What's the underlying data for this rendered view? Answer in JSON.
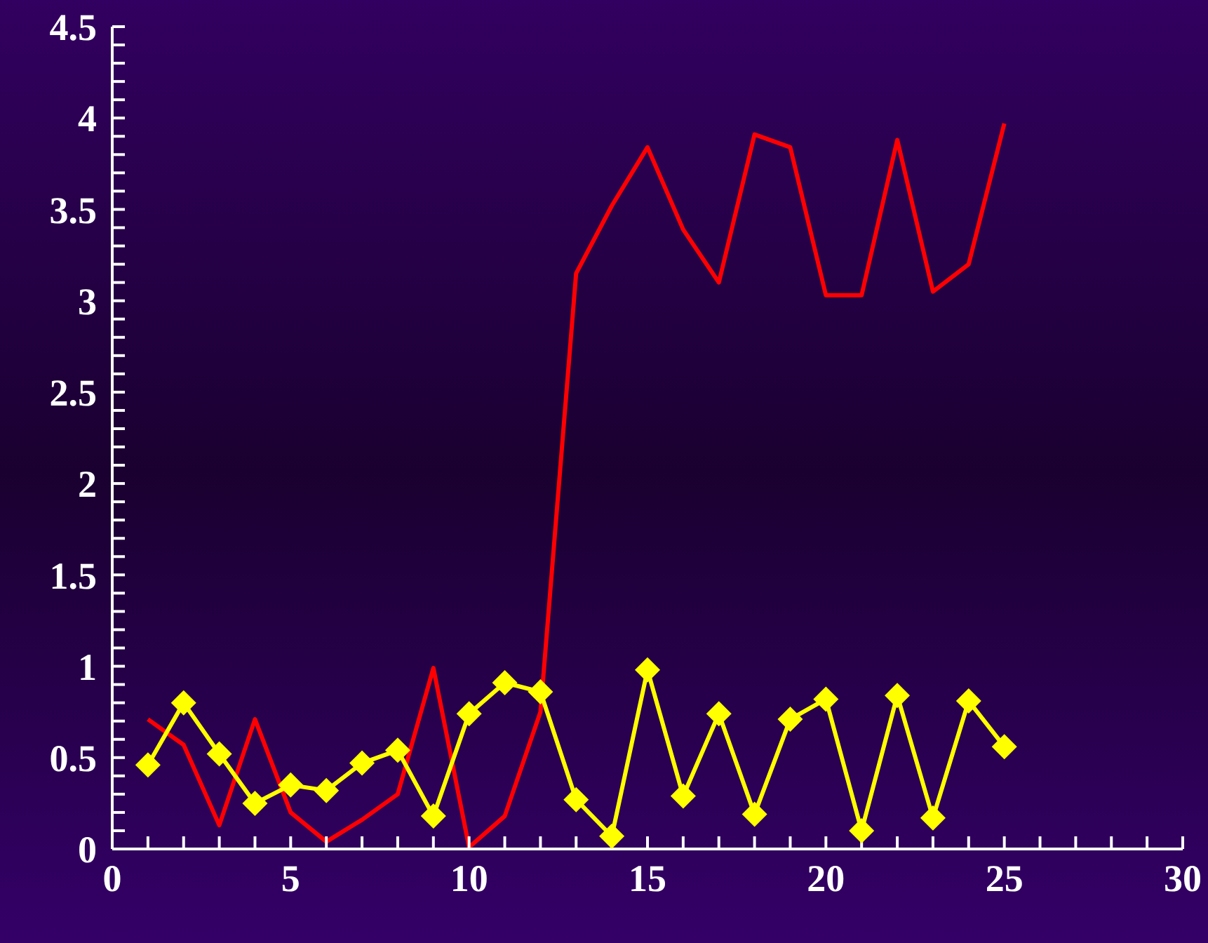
{
  "chart_data": {
    "type": "line",
    "x": [
      1,
      2,
      3,
      4,
      5,
      6,
      7,
      8,
      9,
      10,
      11,
      12,
      13,
      14,
      15,
      16,
      17,
      18,
      19,
      20,
      21,
      22,
      23,
      24,
      25
    ],
    "series": [
      {
        "color": "#ff0000",
        "marker": "none",
        "values": [
          0.71,
          0.57,
          0.13,
          0.71,
          0.2,
          0.04,
          0.16,
          0.3,
          0.99,
          0.01,
          0.18,
          0.75,
          3.15,
          3.52,
          3.84,
          3.39,
          3.1,
          3.91,
          3.84,
          3.03,
          3.03,
          3.88,
          3.05,
          3.2,
          3.97
        ]
      },
      {
        "color": "#ffff00",
        "marker": "diamond",
        "values": [
          0.46,
          0.8,
          0.52,
          0.25,
          0.35,
          0.32,
          0.47,
          0.54,
          0.18,
          0.74,
          0.91,
          0.86,
          0.27,
          0.07,
          0.98,
          0.29,
          0.74,
          0.19,
          0.71,
          0.82,
          0.1,
          0.84,
          0.17,
          0.81,
          0.56
        ]
      }
    ],
    "xlim": [
      0,
      30
    ],
    "xticks": [
      0,
      {
        "value": 1,
        "label": null
      },
      {
        "value": 2,
        "label": null
      },
      {
        "value": 3,
        "label": null
      },
      {
        "value": 4,
        "label": null
      },
      5,
      {
        "value": 6,
        "label": null
      },
      {
        "value": 7,
        "label": null
      },
      {
        "value": 8,
        "label": null
      },
      {
        "value": 9,
        "label": null
      },
      10,
      {
        "value": 11,
        "label": null
      },
      {
        "value": 12,
        "label": null
      },
      {
        "value": 13,
        "label": null
      },
      {
        "value": 14,
        "label": null
      },
      15,
      {
        "value": 16,
        "label": null
      },
      {
        "value": 17,
        "label": null
      },
      {
        "value": 18,
        "label": null
      },
      {
        "value": 19,
        "label": null
      },
      20,
      {
        "value": 21,
        "label": null
      },
      {
        "value": 22,
        "label": null
      },
      {
        "value": 23,
        "label": null
      },
      {
        "value": 24,
        "label": null
      },
      25,
      {
        "value": 26,
        "label": null
      },
      {
        "value": 27,
        "label": null
      },
      {
        "value": 28,
        "label": null
      },
      {
        "value": 29,
        "label": null
      },
      30
    ],
    "ylim": [
      0,
      4.5
    ],
    "yticks": [
      0,
      {
        "value": 0.1,
        "label": null
      },
      {
        "value": 0.2,
        "label": null
      },
      {
        "value": 0.3,
        "label": null
      },
      {
        "value": 0.4,
        "label": null
      },
      0.5,
      {
        "value": 0.6,
        "label": null
      },
      {
        "value": 0.7,
        "label": null
      },
      {
        "value": 0.8,
        "label": null
      },
      {
        "value": 0.9,
        "label": null
      },
      1,
      {
        "value": 1.1,
        "label": null
      },
      {
        "value": 1.2,
        "label": null
      },
      {
        "value": 1.3,
        "label": null
      },
      {
        "value": 1.4,
        "label": null
      },
      1.5,
      {
        "value": 1.6,
        "label": null
      },
      {
        "value": 1.7,
        "label": null
      },
      {
        "value": 1.8,
        "label": null
      },
      {
        "value": 1.9,
        "label": null
      },
      2,
      {
        "value": 2.1,
        "label": null
      },
      {
        "value": 2.2,
        "label": null
      },
      {
        "value": 2.3,
        "label": null
      },
      {
        "value": 2.4,
        "label": null
      },
      2.5,
      {
        "value": 2.6,
        "label": null
      },
      {
        "value": 2.7,
        "label": null
      },
      {
        "value": 2.8,
        "label": null
      },
      {
        "value": 2.9,
        "label": null
      },
      3,
      {
        "value": 3.1,
        "label": null
      },
      {
        "value": 3.2,
        "label": null
      },
      {
        "value": 3.3,
        "label": null
      },
      {
        "value": 3.4,
        "label": null
      },
      3.5,
      {
        "value": 3.6,
        "label": null
      },
      {
        "value": 3.7,
        "label": null
      },
      {
        "value": 3.8,
        "label": null
      },
      {
        "value": 3.9,
        "label": null
      },
      4,
      {
        "value": 4.1,
        "label": null
      },
      {
        "value": 4.2,
        "label": null
      },
      {
        "value": 4.3,
        "label": null
      },
      {
        "value": 4.4,
        "label": null
      },
      4.5
    ],
    "grid": false,
    "legend": false
  }
}
